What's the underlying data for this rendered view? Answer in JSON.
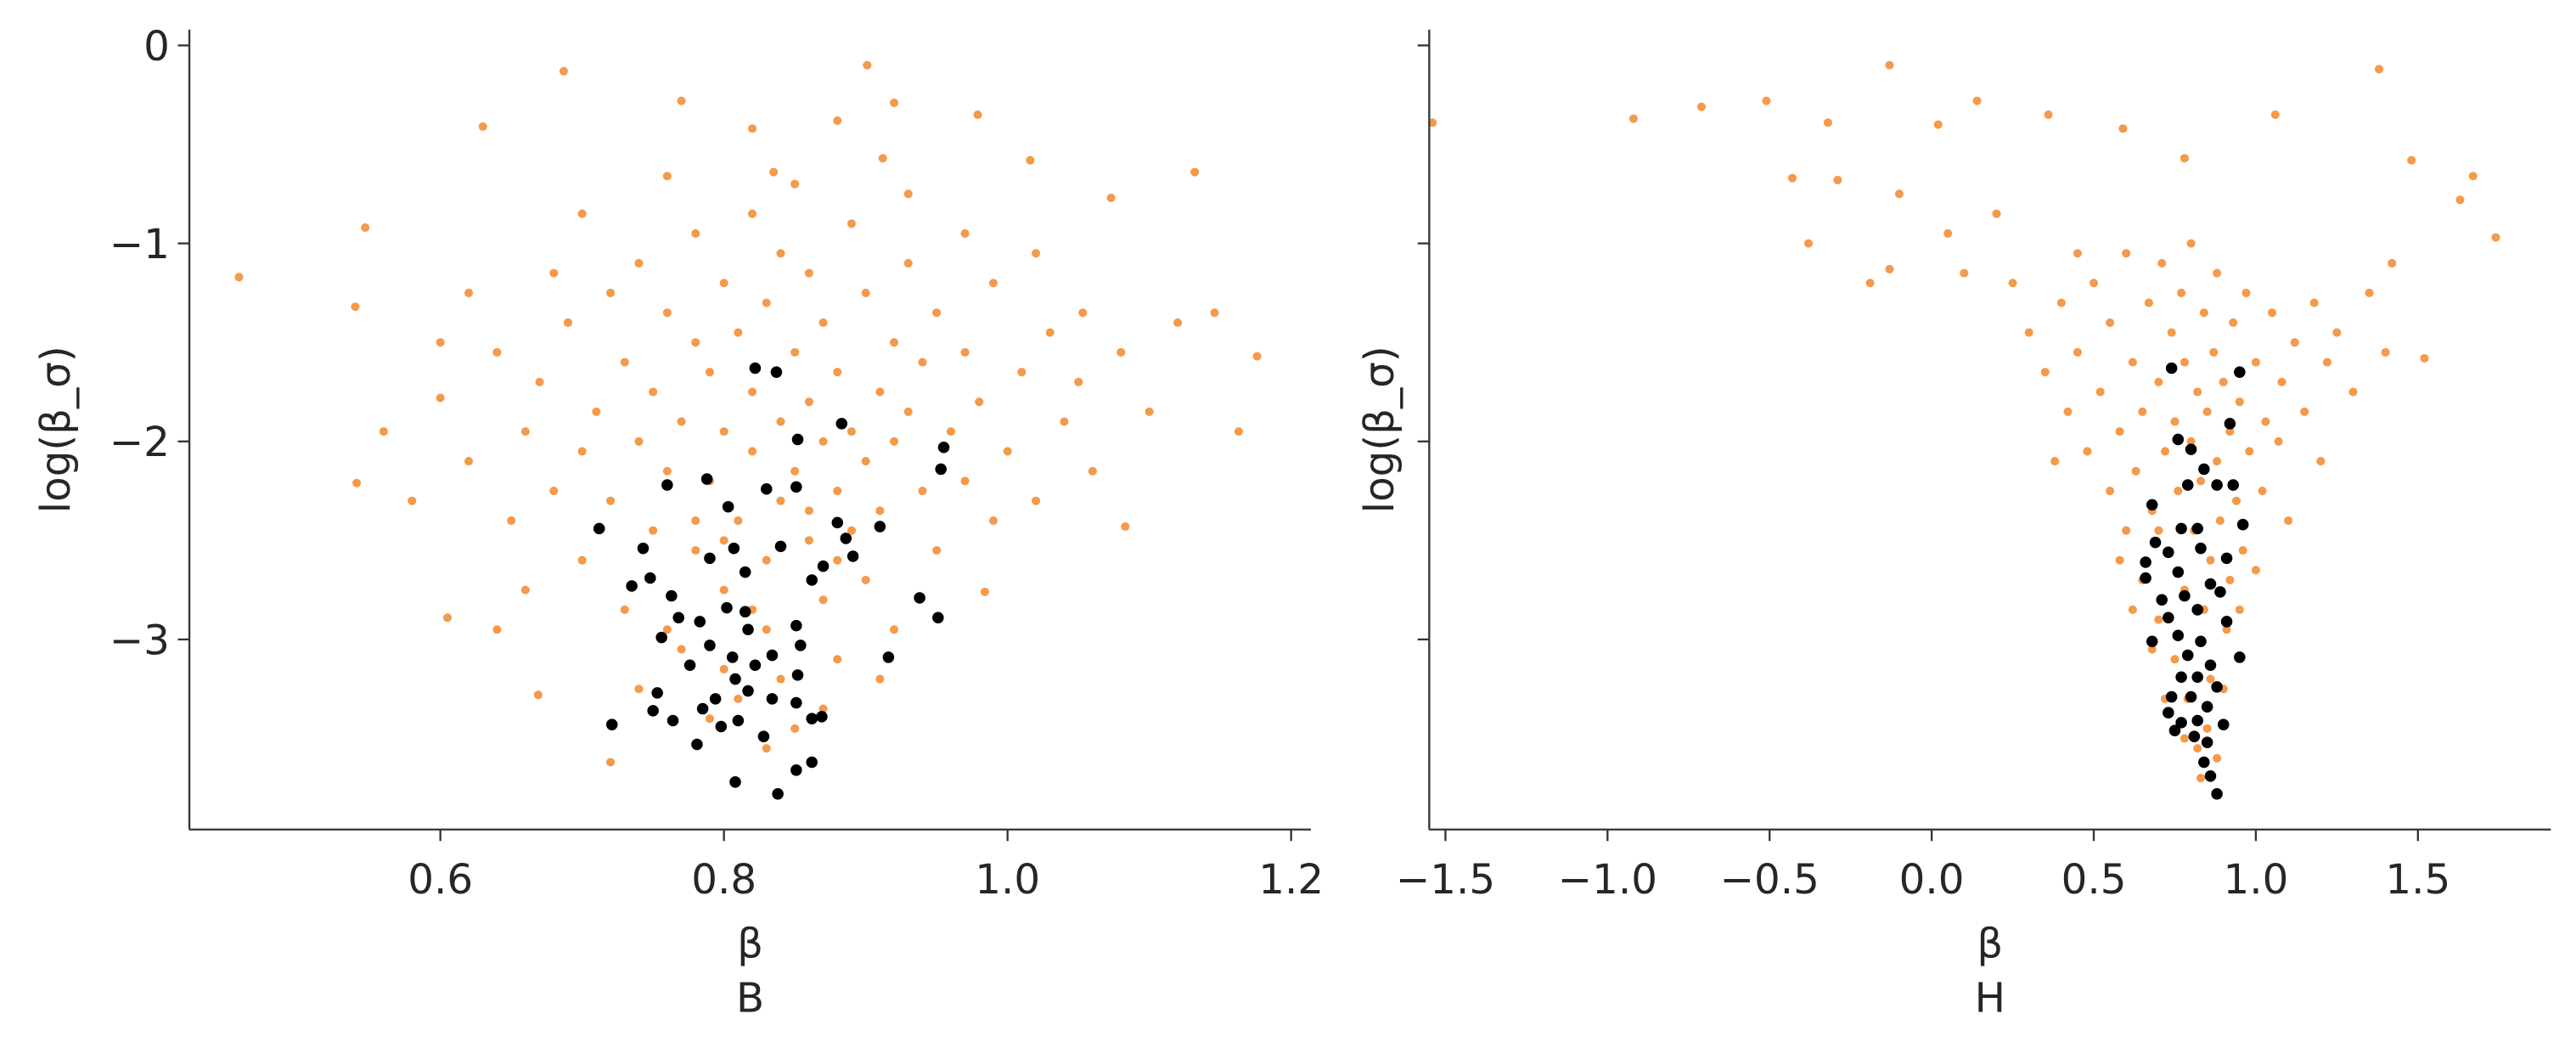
{
  "chart_data": [
    {
      "type": "scatter",
      "ylabel": "log(β_σ)",
      "xlabel": [
        "β",
        "B"
      ],
      "xlim": [
        0.423,
        1.214
      ],
      "ylim": [
        -3.96,
        0.08
      ],
      "xticks": [
        0.6,
        0.8,
        {
          "value": 1,
          "label": "1.0"
        },
        1.2
      ],
      "yticks": [
        0,
        {
          "value": -1,
          "label": "−1"
        },
        {
          "value": -2,
          "label": "−2"
        },
        {
          "value": -3,
          "label": "−3"
        }
      ],
      "show_ytick_labels": true,
      "series": [
        {
          "color": "#f5994a",
          "x": [
            0.458,
            0.687,
            0.901,
            0.63,
            0.77,
            0.547,
            0.54,
            0.541,
            0.605,
            1.176,
            1.132,
            1.073,
            1.016,
            0.979,
            0.912,
            0.92,
            0.669,
            0.72,
            0.984,
            1.083,
            1.163,
            1.146,
            1.053,
            0.88,
            0.82,
            0.76,
            0.835,
            0.6,
            0.62,
            0.64,
            0.65,
            0.66,
            0.67,
            0.68,
            0.69,
            0.7,
            0.7,
            0.71,
            0.72,
            0.72,
            0.73,
            0.73,
            0.74,
            0.74,
            0.75,
            0.75,
            0.76,
            0.76,
            0.77,
            0.77,
            0.78,
            0.78,
            0.78,
            0.79,
            0.79,
            0.8,
            0.8,
            0.8,
            0.81,
            0.81,
            0.81,
            0.82,
            0.82,
            0.82,
            0.83,
            0.83,
            0.83,
            0.84,
            0.84,
            0.84,
            0.85,
            0.85,
            0.85,
            0.86,
            0.86,
            0.86,
            0.87,
            0.87,
            0.87,
            0.88,
            0.88,
            0.88,
            0.89,
            0.89,
            0.89,
            0.9,
            0.9,
            0.9,
            0.91,
            0.91,
            0.92,
            0.92,
            0.92,
            0.93,
            0.93,
            0.94,
            0.94,
            0.95,
            0.95,
            0.96,
            0.97,
            0.97,
            0.98,
            0.99,
            0.99,
            1.0,
            1.01,
            1.02,
            1.03,
            1.04,
            1.05,
            1.06,
            1.08,
            1.1,
            1.12,
            0.58,
            0.56,
            0.62,
            0.66,
            0.68,
            0.7,
            0.74,
            0.79,
            0.83,
            0.87,
            0.91,
            0.85,
            0.93,
            0.97,
            1.02,
            0.64,
            0.6,
            0.76,
            0.8,
            0.84,
            0.88,
            0.82,
            0.78,
            0.86,
            0.8
          ],
          "y": [
            -1.17,
            -0.13,
            -0.1,
            -0.41,
            -0.28,
            -0.92,
            -1.32,
            -2.21,
            -2.89,
            -1.57,
            -0.64,
            -0.77,
            -0.58,
            -0.35,
            -0.57,
            -0.29,
            -3.28,
            -3.62,
            -2.76,
            -2.43,
            -1.95,
            -1.35,
            -1.35,
            -0.38,
            -0.42,
            -0.66,
            -0.64,
            -1.78,
            -2.1,
            -1.55,
            -2.4,
            -1.95,
            -1.7,
            -2.25,
            -1.4,
            -2.05,
            -2.6,
            -1.85,
            -1.25,
            -2.3,
            -1.6,
            -2.85,
            -2.0,
            -1.1,
            -2.45,
            -1.75,
            -1.35,
            -2.15,
            -3.05,
            -1.9,
            -1.5,
            -2.55,
            -0.95,
            -2.2,
            -1.65,
            -2.75,
            -1.2,
            -1.95,
            -2.4,
            -1.45,
            -3.3,
            -2.05,
            -1.75,
            -0.85,
            -2.6,
            -1.3,
            -2.95,
            -1.9,
            -2.3,
            -1.05,
            -1.55,
            -2.15,
            -3.45,
            -2.5,
            -1.8,
            -1.15,
            -2.0,
            -2.8,
            -1.4,
            -2.25,
            -1.65,
            -3.1,
            -1.95,
            -2.45,
            -0.9,
            -1.25,
            -2.1,
            -2.7,
            -1.75,
            -2.35,
            -1.5,
            -2.0,
            -2.95,
            -1.85,
            -1.1,
            -2.25,
            -1.6,
            -2.55,
            -1.35,
            -1.95,
            -2.2,
            -1.55,
            -1.8,
            -2.4,
            -1.2,
            -2.05,
            -1.65,
            -2.3,
            -1.45,
            -1.9,
            -1.7,
            -2.15,
            -1.55,
            -1.85,
            -1.4,
            -2.3,
            -1.95,
            -1.25,
            -2.75,
            -1.15,
            -0.85,
            -3.25,
            -3.4,
            -3.55,
            -3.35,
            -3.2,
            -0.7,
            -0.75,
            -0.95,
            -1.05,
            -2.95,
            -1.5,
            -2.95,
            -3.15,
            -3.2,
            -2.6,
            -2.85,
            -2.4,
            -2.35,
            -2.5
          ]
        },
        {
          "color": "#000000",
          "x": [
            0.822,
            0.837,
            0.852,
            0.883,
            0.955,
            0.953,
            0.76,
            0.788,
            0.83,
            0.851,
            0.712,
            0.803,
            0.807,
            0.88,
            0.91,
            0.743,
            0.735,
            0.748,
            0.763,
            0.79,
            0.815,
            0.84,
            0.862,
            0.87,
            0.891,
            0.886,
            0.938,
            0.951,
            0.768,
            0.756,
            0.783,
            0.802,
            0.815,
            0.817,
            0.79,
            0.776,
            0.806,
            0.822,
            0.834,
            0.851,
            0.854,
            0.852,
            0.808,
            0.916,
            0.753,
            0.794,
            0.817,
            0.834,
            0.851,
            0.721,
            0.75,
            0.764,
            0.785,
            0.798,
            0.81,
            0.828,
            0.862,
            0.869,
            0.781,
            0.808,
            0.851,
            0.862,
            0.838
          ],
          "y": [
            -1.63,
            -1.65,
            -1.99,
            -1.91,
            -2.03,
            -2.14,
            -2.22,
            -2.19,
            -2.24,
            -2.23,
            -2.44,
            -2.33,
            -2.54,
            -2.41,
            -2.43,
            -2.54,
            -2.73,
            -2.69,
            -2.78,
            -2.59,
            -2.66,
            -2.53,
            -2.7,
            -2.63,
            -2.58,
            -2.49,
            -2.79,
            -2.89,
            -2.89,
            -2.99,
            -2.91,
            -2.84,
            -2.86,
            -2.95,
            -3.03,
            -3.13,
            -3.09,
            -3.13,
            -3.08,
            -2.93,
            -3.03,
            -3.18,
            -3.2,
            -3.09,
            -3.27,
            -3.3,
            -3.26,
            -3.3,
            -3.32,
            -3.43,
            -3.36,
            -3.41,
            -3.35,
            -3.44,
            -3.41,
            -3.49,
            -3.4,
            -3.39,
            -3.53,
            -3.72,
            -3.66,
            -3.62,
            -3.78
          ]
        }
      ]
    },
    {
      "type": "scatter",
      "ylabel": "log(β_σ)",
      "xlabel": [
        "β",
        "H"
      ],
      "xlim": [
        -1.55,
        1.91
      ],
      "ylim": [
        -3.96,
        0.08
      ],
      "xticks": [
        {
          "value": -1.5,
          "label": "−1.5"
        },
        {
          "value": -1,
          "label": "−1.0"
        },
        {
          "value": -0.5,
          "label": "−0.5"
        },
        {
          "value": 0,
          "label": "0.0"
        },
        0.5,
        {
          "value": 1,
          "label": "1.0"
        },
        1.5
      ],
      "yticks": [
        0,
        -1,
        -2,
        -3
      ],
      "show_ytick_labels": false,
      "series": [
        {
          "color": "#f5994a",
          "x": [
            -1.54,
            -0.92,
            -0.71,
            -0.51,
            -0.13,
            -0.32,
            -0.29,
            -0.43,
            -0.38,
            -0.19,
            0.14,
            0.02,
            0.36,
            0.59,
            0.78,
            1.06,
            1.38,
            1.48,
            1.67,
            1.74,
            1.63,
            1.52,
            -0.13,
            -0.1,
            0.05,
            0.2,
            0.25,
            0.1,
            0.3,
            0.35,
            0.4,
            0.42,
            0.45,
            0.48,
            0.5,
            0.52,
            0.55,
            0.55,
            0.58,
            0.6,
            0.6,
            0.62,
            0.63,
            0.65,
            0.65,
            0.67,
            0.68,
            0.7,
            0.7,
            0.71,
            0.72,
            0.73,
            0.74,
            0.75,
            0.75,
            0.76,
            0.77,
            0.78,
            0.78,
            0.79,
            0.8,
            0.8,
            0.81,
            0.82,
            0.82,
            0.83,
            0.84,
            0.84,
            0.85,
            0.86,
            0.86,
            0.87,
            0.88,
            0.88,
            0.89,
            0.9,
            0.91,
            0.92,
            0.93,
            0.94,
            0.95,
            0.96,
            0.97,
            0.98,
            1.0,
            1.02,
            1.03,
            1.05,
            1.07,
            1.08,
            1.1,
            1.12,
            1.15,
            1.18,
            1.2,
            1.22,
            1.25,
            1.3,
            1.35,
            1.4,
            1.42,
            0.38,
            0.45,
            0.58,
            0.68,
            0.72,
            0.78,
            0.85,
            0.9,
            0.95,
            1.0,
            0.62,
            0.7,
            0.92,
            0.83,
            0.88
          ],
          "y": [
            -0.39,
            -0.37,
            -0.31,
            -0.28,
            -0.1,
            -0.39,
            -0.68,
            -0.67,
            -1.0,
            -1.2,
            -0.28,
            -0.4,
            -0.35,
            -0.42,
            -0.57,
            -0.35,
            -0.12,
            -0.58,
            -0.66,
            -0.97,
            -0.78,
            -1.58,
            -1.13,
            -0.75,
            -0.95,
            -0.85,
            -1.2,
            -1.15,
            -1.45,
            -1.65,
            -1.3,
            -1.85,
            -1.55,
            -2.05,
            -1.2,
            -1.75,
            -2.25,
            -1.4,
            -1.95,
            -1.05,
            -2.45,
            -1.6,
            -2.15,
            -1.85,
            -2.7,
            -1.3,
            -2.35,
            -1.7,
            -2.9,
            -1.1,
            -2.05,
            -2.55,
            -1.45,
            -3.1,
            -1.9,
            -2.25,
            -1.25,
            -2.75,
            -1.6,
            -3.3,
            -2.0,
            -1.0,
            -2.45,
            -1.75,
            -3.55,
            -2.2,
            -1.35,
            -2.85,
            -1.85,
            -2.6,
            -3.2,
            -1.55,
            -2.1,
            -1.15,
            -2.4,
            -1.7,
            -2.95,
            -1.95,
            -1.4,
            -2.3,
            -1.8,
            -2.55,
            -1.25,
            -2.05,
            -1.6,
            -2.25,
            -1.9,
            -1.35,
            -2.0,
            -1.7,
            -2.4,
            -1.5,
            -1.85,
            -1.3,
            -2.1,
            -1.6,
            -1.45,
            -1.75,
            -1.25,
            -1.55,
            -1.1,
            -2.1,
            -1.05,
            -2.6,
            -3.05,
            -3.3,
            -3.5,
            -3.45,
            -3.25,
            -2.85,
            -2.65,
            -2.85,
            -2.45,
            -2.7,
            -3.7,
            -3.6
          ]
        },
        {
          "color": "#000000",
          "x": [
            0.74,
            0.95,
            0.76,
            0.8,
            0.92,
            0.79,
            0.88,
            0.93,
            0.84,
            0.68,
            0.96,
            0.77,
            0.82,
            0.69,
            0.73,
            0.66,
            0.83,
            0.91,
            0.66,
            0.76,
            0.86,
            0.71,
            0.78,
            0.89,
            0.73,
            0.82,
            0.91,
            0.76,
            0.68,
            0.83,
            0.95,
            0.79,
            0.86,
            0.77,
            0.82,
            0.88,
            0.74,
            0.8,
            0.85,
            0.73,
            0.77,
            0.82,
            0.9,
            0.75,
            0.81,
            0.85,
            0.84,
            0.86,
            0.88
          ],
          "y": [
            -1.63,
            -1.65,
            -1.99,
            -2.04,
            -1.91,
            -2.22,
            -2.22,
            -2.22,
            -2.14,
            -2.32,
            -2.42,
            -2.44,
            -2.44,
            -2.51,
            -2.56,
            -2.61,
            -2.54,
            -2.59,
            -2.69,
            -2.66,
            -2.72,
            -2.8,
            -2.78,
            -2.76,
            -2.89,
            -2.85,
            -2.91,
            -2.98,
            -3.01,
            -3.01,
            -3.09,
            -3.08,
            -3.13,
            -3.19,
            -3.19,
            -3.24,
            -3.29,
            -3.29,
            -3.34,
            -3.37,
            -3.42,
            -3.41,
            -3.43,
            -3.46,
            -3.49,
            -3.52,
            -3.62,
            -3.69,
            -3.78
          ]
        }
      ]
    }
  ]
}
